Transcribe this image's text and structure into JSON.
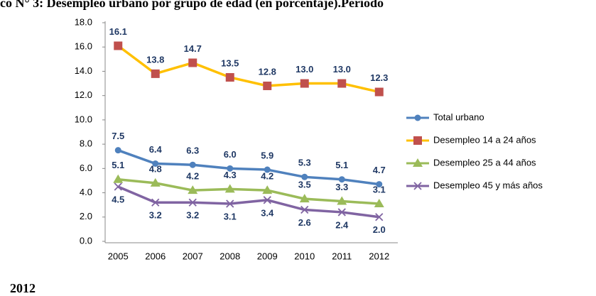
{
  "chart_data": {
    "type": "line",
    "title": "co N° 3: Desempleo urbano por grupo de edad (en porcentaje).Periodo",
    "subtitle": "2012",
    "categories": [
      "2005",
      "2006",
      "2007",
      "2008",
      "2009",
      "2010",
      "2011",
      "2012"
    ],
    "series": [
      {
        "name": "Total urbano",
        "color": "#4f81bd",
        "marker": "circle",
        "values": [
          7.5,
          6.4,
          6.3,
          6.0,
          5.9,
          5.3,
          5.1,
          4.7
        ],
        "value_labels": [
          "7.5",
          "6.4",
          "6.3",
          "6.0",
          "5.9",
          "5.3",
          "5.1",
          "4.7"
        ]
      },
      {
        "name": "Desempleo 14 a 24 años",
        "color": "#ffc000",
        "marker_color": "#c0504d",
        "marker": "square",
        "values": [
          16.1,
          13.8,
          14.7,
          13.5,
          12.8,
          13.0,
          13.0,
          12.3
        ],
        "value_labels": [
          "16.1",
          "13.8",
          "14.7",
          "13.5",
          "12.8",
          "13.0",
          "13.0",
          "12.3"
        ]
      },
      {
        "name": "Desempleo 25 a 44 años",
        "color": "#9bbb59",
        "marker": "triangle",
        "values": [
          5.1,
          4.8,
          4.2,
          4.3,
          4.2,
          3.5,
          3.3,
          3.1
        ],
        "value_labels": [
          "5.1",
          "4.8",
          "4.2",
          "4.3",
          "4.2",
          "3.5",
          "3.3",
          "3.1"
        ]
      },
      {
        "name": "Desempleo 45 y más años",
        "color": "#8064a2",
        "marker": "x",
        "values": [
          4.5,
          3.2,
          3.2,
          3.1,
          3.4,
          2.6,
          2.4,
          2.0
        ],
        "value_labels": [
          "4.5",
          "3.2",
          "3.2",
          "3.1",
          "3.4",
          "2.6",
          "2.4",
          "2.0"
        ]
      }
    ],
    "ylim": [
      0,
      18
    ],
    "yticks": [
      {
        "value": 0,
        "label": "0.0"
      },
      {
        "value": 2,
        "label": "2.0"
      },
      {
        "value": 4,
        "label": "4.0"
      },
      {
        "value": 6,
        "label": "6.0"
      },
      {
        "value": 8,
        "label": "8.0"
      },
      {
        "value": 10,
        "label": "10.0"
      },
      {
        "value": 12,
        "label": "12.0"
      },
      {
        "value": 14,
        "label": "14.0"
      },
      {
        "value": 16,
        "label": "16.0"
      },
      {
        "value": 18,
        "label": "18.0"
      }
    ],
    "grid": false,
    "legend": "right"
  }
}
